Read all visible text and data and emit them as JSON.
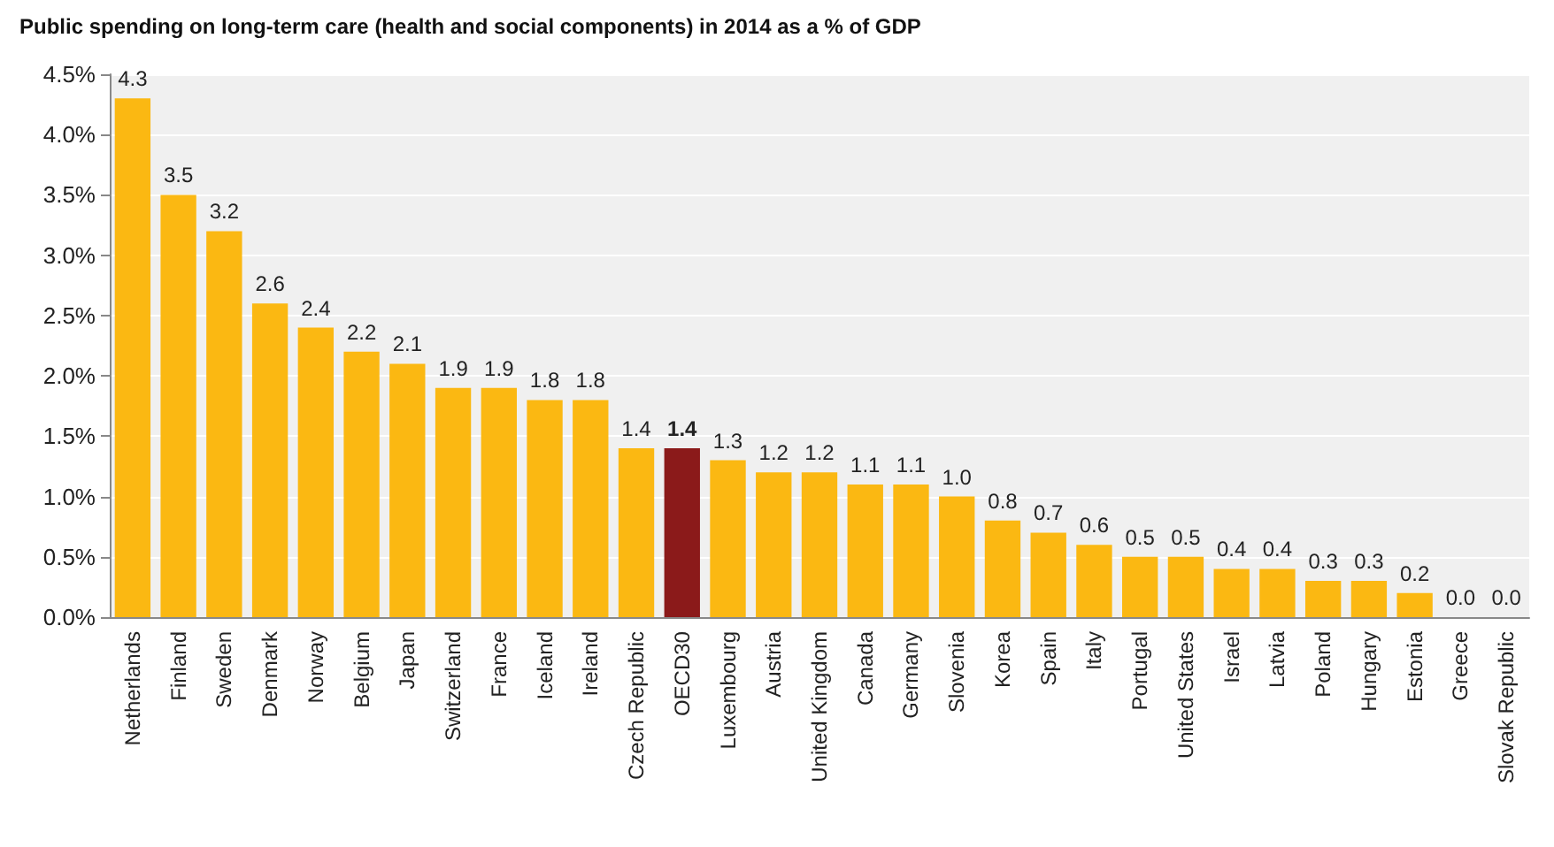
{
  "chart_data": {
    "type": "bar",
    "title": "Public spending on long-term care (health and social components) in 2014 as a % of GDP",
    "categories": [
      "Netherlands",
      "Finland",
      "Sweden",
      "Denmark",
      "Norway",
      "Belgium",
      "Japan",
      "Switzerland",
      "France",
      "Iceland",
      "Ireland",
      "Czech Republic",
      "OECD30",
      "Luxembourg",
      "Austria",
      "United Kingdom",
      "Canada",
      "Germany",
      "Slovenia",
      "Korea",
      "Spain",
      "Italy",
      "Portugal",
      "United States",
      "Israel",
      "Latvia",
      "Poland",
      "Hungary",
      "Estonia",
      "Greece",
      "Slovak Republic"
    ],
    "values": [
      4.3,
      3.5,
      3.2,
      2.6,
      2.4,
      2.2,
      2.1,
      1.9,
      1.9,
      1.8,
      1.8,
      1.4,
      1.4,
      1.3,
      1.2,
      1.2,
      1.1,
      1.1,
      1.0,
      0.8,
      0.7,
      0.6,
      0.5,
      0.5,
      0.4,
      0.4,
      0.3,
      0.3,
      0.2,
      0.0,
      0.0
    ],
    "value_labels": [
      "4.3",
      "3.5",
      "3.2",
      "2.6",
      "2.4",
      "2.2",
      "2.1",
      "1.9",
      "1.9",
      "1.8",
      "1.8",
      "1.4",
      "1.4",
      "1.3",
      "1.2",
      "1.2",
      "1.1",
      "1.1",
      "1.0",
      "0.8",
      "0.7",
      "0.6",
      "0.5",
      "0.5",
      "0.4",
      "0.4",
      "0.3",
      "0.3",
      "0.2",
      "0.0",
      "0.0"
    ],
    "colors": [
      "#fbb812",
      "#fbb812",
      "#fbb812",
      "#fbb812",
      "#fbb812",
      "#fbb812",
      "#fbb812",
      "#fbb812",
      "#fbb812",
      "#fbb812",
      "#fbb812",
      "#fbb812",
      "#8b1a1a",
      "#fbb812",
      "#fbb812",
      "#fbb812",
      "#fbb812",
      "#fbb812",
      "#fbb812",
      "#fbb812",
      "#fbb812",
      "#fbb812",
      "#fbb812",
      "#fbb812",
      "#fbb812",
      "#fbb812",
      "#fbb812",
      "#fbb812",
      "#fbb812",
      "#fbb812",
      "#fbb812"
    ],
    "ylim": [
      0,
      4.5
    ],
    "yticks": [
      {
        "value": 0,
        "label": "0.0%"
      },
      {
        "value": 0.5,
        "label": "0.5%"
      },
      {
        "value": 1,
        "label": "1.0%"
      },
      {
        "value": 1.5,
        "label": "1.5%"
      },
      {
        "value": 2,
        "label": "2.0%"
      },
      {
        "value": 2.5,
        "label": "2.5%"
      },
      {
        "value": 3,
        "label": "3.0%"
      },
      {
        "value": 3.5,
        "label": "3.5%"
      },
      {
        "value": 4,
        "label": "4.0%"
      },
      {
        "value": 4.5,
        "label": "4.5%"
      }
    ],
    "grid": "y"
  }
}
